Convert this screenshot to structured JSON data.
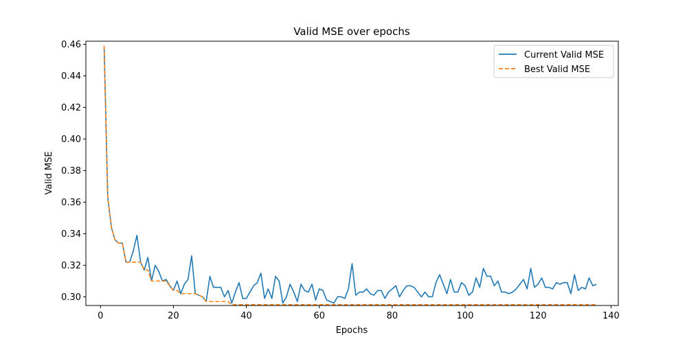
{
  "chart_data": {
    "type": "line",
    "title": "Valid MSE over epochs",
    "xlabel": "Epochs",
    "ylabel": "Valid MSE",
    "xlim": [
      -4,
      142
    ],
    "ylim": [
      0.2945,
      0.462
    ],
    "xticks": [
      0,
      20,
      40,
      60,
      80,
      100,
      120,
      140
    ],
    "yticks": [
      0.3,
      0.32,
      0.34,
      0.36,
      0.38,
      0.4,
      0.42,
      0.44,
      0.46
    ],
    "grid": false,
    "legend_position": "top-right",
    "x": [
      1,
      2,
      3,
      4,
      5,
      6,
      7,
      8,
      9,
      10,
      11,
      12,
      13,
      14,
      15,
      16,
      17,
      18,
      19,
      20,
      21,
      22,
      23,
      24,
      25,
      26,
      27,
      28,
      29,
      30,
      31,
      32,
      33,
      34,
      35,
      36,
      37,
      38,
      39,
      40,
      41,
      42,
      43,
      44,
      45,
      46,
      47,
      48,
      49,
      50,
      51,
      52,
      53,
      54,
      55,
      56,
      57,
      58,
      59,
      60,
      61,
      62,
      63,
      64,
      65,
      66,
      67,
      68,
      69,
      70,
      71,
      72,
      73,
      74,
      75,
      76,
      77,
      78,
      79,
      80,
      81,
      82,
      83,
      84,
      85,
      86,
      87,
      88,
      89,
      90,
      91,
      92,
      93,
      94,
      95,
      96,
      97,
      98,
      99,
      100,
      101,
      102,
      103,
      104,
      105,
      106,
      107,
      108,
      109,
      110,
      111,
      112,
      113,
      114,
      115,
      116,
      117,
      118,
      119,
      120,
      121,
      122,
      123,
      124,
      125,
      126,
      127,
      128,
      129,
      130,
      131,
      132,
      133,
      134,
      135,
      136
    ],
    "series": [
      {
        "name": "Current Valid MSE",
        "color": "#1f77b4",
        "style": "solid",
        "values": [
          0.459,
          0.363,
          0.344,
          0.336,
          0.334,
          0.334,
          0.322,
          0.322,
          0.329,
          0.339,
          0.322,
          0.317,
          0.325,
          0.31,
          0.32,
          0.316,
          0.31,
          0.311,
          0.307,
          0.304,
          0.31,
          0.302,
          0.308,
          0.311,
          0.326,
          0.302,
          0.301,
          0.3,
          0.297,
          0.313,
          0.306,
          0.306,
          0.306,
          0.3,
          0.304,
          0.296,
          0.303,
          0.309,
          0.299,
          0.299,
          0.303,
          0.307,
          0.309,
          0.315,
          0.299,
          0.305,
          0.299,
          0.313,
          0.31,
          0.296,
          0.3,
          0.308,
          0.303,
          0.297,
          0.308,
          0.304,
          0.303,
          0.308,
          0.298,
          0.305,
          0.304,
          0.298,
          0.297,
          0.296,
          0.3,
          0.3,
          0.299,
          0.305,
          0.321,
          0.301,
          0.303,
          0.303,
          0.305,
          0.302,
          0.301,
          0.304,
          0.304,
          0.299,
          0.303,
          0.305,
          0.307,
          0.3,
          0.304,
          0.307,
          0.307,
          0.306,
          0.303,
          0.3,
          0.303,
          0.3,
          0.3,
          0.309,
          0.314,
          0.308,
          0.302,
          0.311,
          0.303,
          0.303,
          0.309,
          0.307,
          0.301,
          0.303,
          0.312,
          0.306,
          0.318,
          0.313,
          0.313,
          0.307,
          0.31,
          0.303,
          0.303,
          0.302,
          0.303,
          0.305,
          0.308,
          0.311,
          0.305,
          0.318,
          0.306,
          0.308,
          0.312,
          0.306,
          0.306,
          0.305,
          0.309,
          0.308,
          0.309,
          0.309,
          0.302,
          0.314,
          0.304,
          0.306,
          0.305,
          0.312,
          0.307,
          0.308
        ]
      },
      {
        "name": "Best Valid MSE",
        "color": "#ff7f0e",
        "style": "dashed",
        "values": [
          0.459,
          0.363,
          0.344,
          0.336,
          0.334,
          0.334,
          0.322,
          0.322,
          0.322,
          0.322,
          0.322,
          0.317,
          0.317,
          0.31,
          0.31,
          0.31,
          0.31,
          0.31,
          0.307,
          0.304,
          0.304,
          0.302,
          0.302,
          0.302,
          0.302,
          0.302,
          0.301,
          0.3,
          0.297,
          0.297,
          0.297,
          0.297,
          0.297,
          0.297,
          0.297,
          0.295,
          0.295,
          0.295,
          0.295,
          0.295,
          0.295,
          0.295,
          0.295,
          0.295,
          0.295,
          0.295,
          0.295,
          0.295,
          0.295,
          0.295,
          0.295,
          0.295,
          0.295,
          0.295,
          0.295,
          0.295,
          0.295,
          0.295,
          0.295,
          0.295,
          0.295,
          0.295,
          0.295,
          0.295,
          0.295,
          0.295,
          0.295,
          0.295,
          0.295,
          0.295,
          0.295,
          0.295,
          0.295,
          0.295,
          0.295,
          0.295,
          0.295,
          0.295,
          0.295,
          0.295,
          0.295,
          0.295,
          0.295,
          0.295,
          0.295,
          0.295,
          0.295,
          0.295,
          0.295,
          0.295,
          0.295,
          0.295,
          0.295,
          0.295,
          0.295,
          0.295,
          0.295,
          0.295,
          0.295,
          0.295,
          0.295,
          0.295,
          0.295,
          0.295,
          0.295,
          0.295,
          0.295,
          0.295,
          0.295,
          0.295,
          0.295,
          0.295,
          0.295,
          0.295,
          0.295,
          0.295,
          0.295,
          0.295,
          0.295,
          0.295,
          0.295,
          0.295,
          0.295,
          0.295,
          0.295,
          0.295,
          0.295,
          0.295,
          0.295,
          0.295,
          0.295,
          0.295,
          0.295,
          0.295,
          0.295,
          0.295
        ]
      }
    ]
  }
}
